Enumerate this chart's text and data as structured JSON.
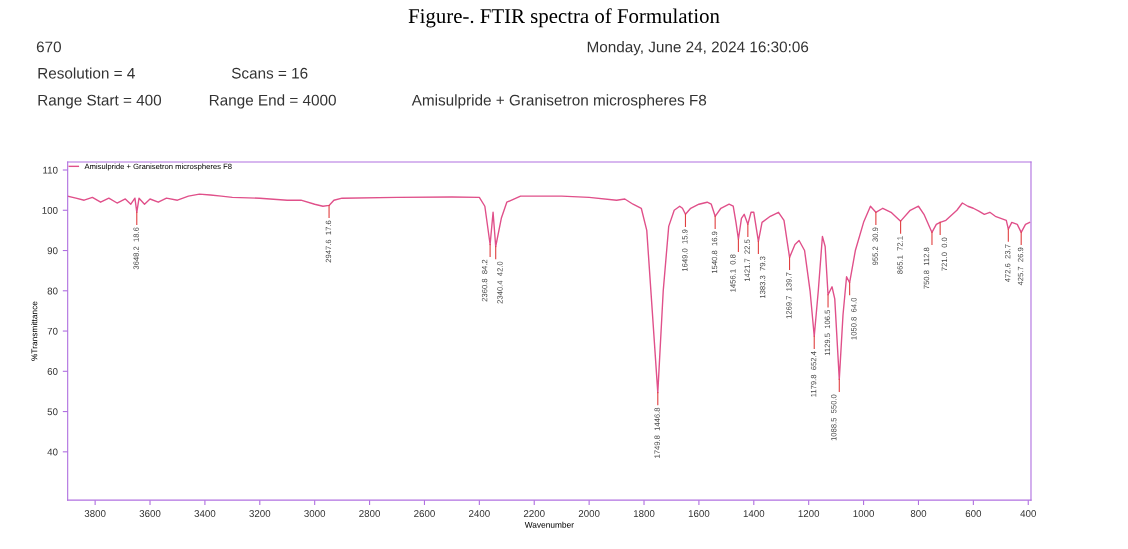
{
  "chart_data": {
    "type": "line",
    "title": "Figure-. FTIR spectra of Formulation",
    "xlabel": "Wavenumber",
    "ylabel": "%Transmittance",
    "x": [
      3900,
      3870,
      3840,
      3810,
      3780,
      3750,
      3720,
      3690,
      3670,
      3655,
      3648.2,
      3640,
      3620,
      3600,
      3570,
      3540,
      3500,
      3460,
      3420,
      3380,
      3340,
      3300,
      3200,
      3100,
      3050,
      3000,
      2970,
      2947.6,
      2930,
      2900,
      2700,
      2500,
      2400,
      2380,
      2360.8,
      2350,
      2340.4,
      2320,
      2300,
      2250,
      2100,
      2000,
      1900,
      1870,
      1840,
      1810,
      1790,
      1770,
      1749.8,
      1730,
      1710,
      1690,
      1670,
      1660,
      1649.0,
      1630,
      1600,
      1570,
      1555,
      1540.8,
      1520,
      1490,
      1475,
      1465,
      1456.1,
      1445,
      1435,
      1421.7,
      1410,
      1400,
      1383.3,
      1370,
      1340,
      1310,
      1290,
      1269.7,
      1250,
      1235,
      1215,
      1195,
      1179.8,
      1165,
      1150,
      1140,
      1129.5,
      1115,
      1105,
      1088.5,
      1075,
      1062,
      1050.8,
      1030,
      1000,
      975,
      955.2,
      930,
      900,
      865.1,
      830,
      800,
      780,
      750.8,
      735,
      721.0,
      700,
      660,
      640,
      620,
      600,
      580,
      560,
      540,
      520,
      500,
      480,
      472.6,
      460,
      440,
      425.7,
      410,
      395
    ],
    "series": [
      {
        "name": "Amisulpride + Granisetron microspheres F8",
        "color": "#e0508a",
        "values": [
          103.5,
          103,
          102.5,
          103.2,
          102,
          103,
          101.8,
          102.8,
          101.5,
          103,
          99.5,
          103,
          101.5,
          102.8,
          102,
          103,
          102.5,
          103.5,
          104,
          103.8,
          103.5,
          103.2,
          103,
          102.5,
          102.5,
          101.5,
          101,
          101.2,
          102.5,
          103,
          103.2,
          103.3,
          103.2,
          101,
          91.5,
          99.5,
          91,
          98,
          102,
          103.5,
          103.5,
          103.2,
          102.5,
          102.8,
          101.5,
          100.5,
          95,
          75,
          54.7,
          80,
          96,
          100,
          101,
          100.5,
          99,
          100.5,
          101.5,
          102,
          101.5,
          98.5,
          100.5,
          101.5,
          101,
          97,
          92.8,
          98,
          99,
          96.5,
          99.5,
          99.5,
          92.3,
          97,
          98.5,
          99.5,
          97.5,
          88.3,
          91.5,
          92.5,
          90,
          80,
          68.7,
          80,
          93.5,
          91,
          79,
          81,
          78,
          58,
          74,
          83.5,
          82,
          90,
          97,
          101,
          99.5,
          100.5,
          99.5,
          97.3,
          100,
          101,
          99,
          94.5,
          96.5,
          97,
          97.5,
          100,
          101.8,
          101,
          100.5,
          99.8,
          99,
          99.5,
          98.5,
          98,
          97.5,
          95.3,
          97,
          96.5,
          94.5,
          96.5,
          97
        ]
      }
    ],
    "xlim": [
      3900,
      390
    ],
    "ylim": [
      28,
      112
    ],
    "xticks": [
      3800,
      3600,
      3400,
      3200,
      3000,
      2800,
      2600,
      2400,
      2200,
      2000,
      1800,
      1600,
      1400,
      1200,
      1000,
      800,
      600,
      400
    ],
    "yticks": [
      40,
      50,
      60,
      70,
      80,
      90,
      100,
      110
    ],
    "grid": false,
    "legend": "top left",
    "annotations": [
      "670",
      "Monday, June 24, 2024 16:30:06",
      "Resolution = 4",
      "Scans = 16",
      "Range Start = 400",
      "Range End = 4000",
      "Amisulpride + Granisetron microspheres F8",
      {
        "text": "3648.2  18.6",
        "x": 3648.2,
        "y": 99.5
      },
      {
        "text": "2947.6  17.6",
        "x": 2947.6,
        "y": 101.2
      },
      {
        "text": "2360.8  84.2",
        "x": 2360.8,
        "y": 91.5
      },
      {
        "text": "2340.4  42.0",
        "x": 2340.4,
        "y": 91
      },
      {
        "text": "1749.8  1446.8",
        "x": 1749.8,
        "y": 54.7
      },
      {
        "text": "1649.0  15.9",
        "x": 1649.0,
        "y": 99
      },
      {
        "text": "1540.8  16.9",
        "x": 1540.8,
        "y": 98.5
      },
      {
        "text": "1456.1  0.8",
        "x": 1456.1,
        "y": 92.8
      },
      {
        "text": "1421.7  22.5",
        "x": 1421.7,
        "y": 96.5
      },
      {
        "text": "1383.3  79.3",
        "x": 1383.3,
        "y": 92.3
      },
      {
        "text": "1269.7  139.7",
        "x": 1269.7,
        "y": 88.3
      },
      {
        "text": "1179.8  652.4",
        "x": 1179.8,
        "y": 68.7
      },
      {
        "text": "1129.5  106.5",
        "x": 1129.5,
        "y": 79
      },
      {
        "text": "1088.5  550.0",
        "x": 1088.5,
        "y": 58
      },
      {
        "text": "1050.8  64.0",
        "x": 1050.8,
        "y": 82
      },
      {
        "text": "955.2  30.9",
        "x": 955.2,
        "y": 99.5
      },
      {
        "text": "865.1  72.1",
        "x": 865.1,
        "y": 97.3
      },
      {
        "text": "750.8  112.8",
        "x": 750.8,
        "y": 94.5
      },
      {
        "text": "721.0  0.0",
        "x": 721.0,
        "y": 97
      },
      {
        "text": "472.6  23.7",
        "x": 472.6,
        "y": 95.3
      },
      {
        "text": "425.7  26.9",
        "x": 425.7,
        "y": 94.5
      }
    ]
  }
}
